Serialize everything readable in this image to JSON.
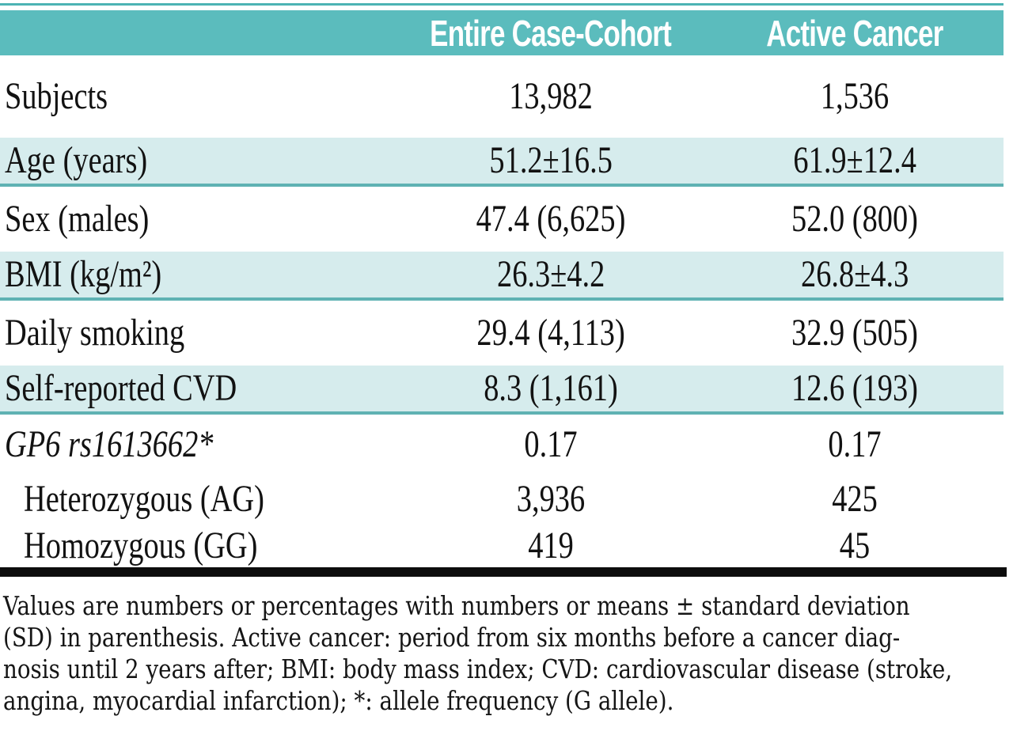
{
  "table": {
    "title_hint": "cohort-characteristics-table",
    "header": {
      "blank": "",
      "col2": "Entire Case-Cohort",
      "col3": "Active Cancer"
    },
    "rows": [
      {
        "label": "Subjects",
        "v1": "13,982",
        "v2": "1,536"
      },
      {
        "label": "Age (years)",
        "v1": "51.2±16.5",
        "v2": "61.9±12.4"
      },
      {
        "label": "Sex (males)",
        "v1": "47.4 (6,625)",
        "v2": "52.0 (800)"
      },
      {
        "label": "BMI (kg/m²)",
        "v1": "26.3±4.2",
        "v2": "26.8±4.3"
      },
      {
        "label": "Daily smoking",
        "v1": "29.4 (4,113)",
        "v2": "32.9 (505)"
      },
      {
        "label": "Self-reported CVD",
        "v1": "8.3 (1,161)",
        "v2": "12.6 (193)"
      },
      {
        "label": "GP6 rs1613662*",
        "v1": "0.17",
        "v2": "0.17"
      },
      {
        "label": "Heterozygous (AG)",
        "v1": "3,936",
        "v2": "425"
      },
      {
        "label": "Homozygous (GG)",
        "v1": "419",
        "v2": "45"
      }
    ]
  },
  "footnote": {
    "lines": [
      "Values are numbers or percentages with numbers or means ± standard deviation",
      "(SD) in parenthesis. Active cancer: period from six months before a cancer diag-",
      "nosis until 2 years after; BMI: body mass index; CVD: cardiovascular disease (stroke,",
      "angina, myocardial infarction); *: allele frequency (G allele)."
    ]
  },
  "colors": {
    "header_bg": "#5bbcbd",
    "header_text": "#ffffff",
    "shaded_row_bg": "#d6eced",
    "shaded_row_border": "#5fb2b3",
    "top_line": "#4db3b4",
    "bottom_rule": "#0d0d0d",
    "body_text": "#121212"
  }
}
